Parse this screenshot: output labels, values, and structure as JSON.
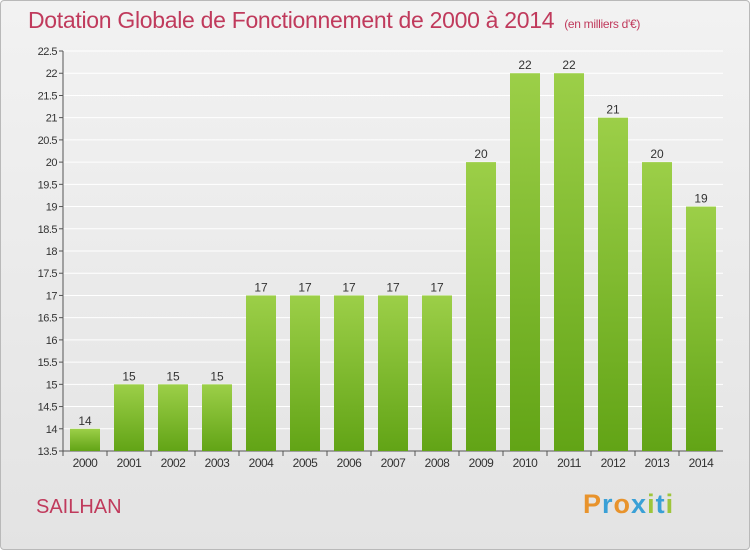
{
  "title": "Dotation Globale de Fonctionnement de 2000 à 2014",
  "subtitle": "(en milliers d'€)",
  "commune": "SAILHAN",
  "logo_letters": [
    "P",
    "r",
    "o",
    "x",
    "i",
    "t",
    "i"
  ],
  "colors": {
    "bar_light": "#9ccf48",
    "bar_dark": "#62a416",
    "title": "#c03a5c",
    "grid": "#ffffff"
  },
  "chart_data": {
    "type": "bar",
    "categories": [
      "2000",
      "2001",
      "2002",
      "2003",
      "2004",
      "2005",
      "2006",
      "2007",
      "2008",
      "2009",
      "2010",
      "2011",
      "2012",
      "2013",
      "2014"
    ],
    "values": [
      14,
      15,
      15,
      15,
      17,
      17,
      17,
      17,
      17,
      20,
      22,
      22,
      21,
      20,
      19
    ],
    "title": "Dotation Globale de Fonctionnement de 2000 à 2014",
    "subtitle": "(en milliers d'€)",
    "xlabel": "",
    "ylabel": "",
    "ylim": [
      13.5,
      22.5
    ],
    "yticks": [
      13.5,
      14,
      14.5,
      15,
      15.5,
      16,
      16.5,
      17,
      17.5,
      18,
      18.5,
      19,
      19.5,
      20,
      20.5,
      21,
      21.5,
      22,
      22.5
    ],
    "grid": true,
    "legend": "none"
  }
}
